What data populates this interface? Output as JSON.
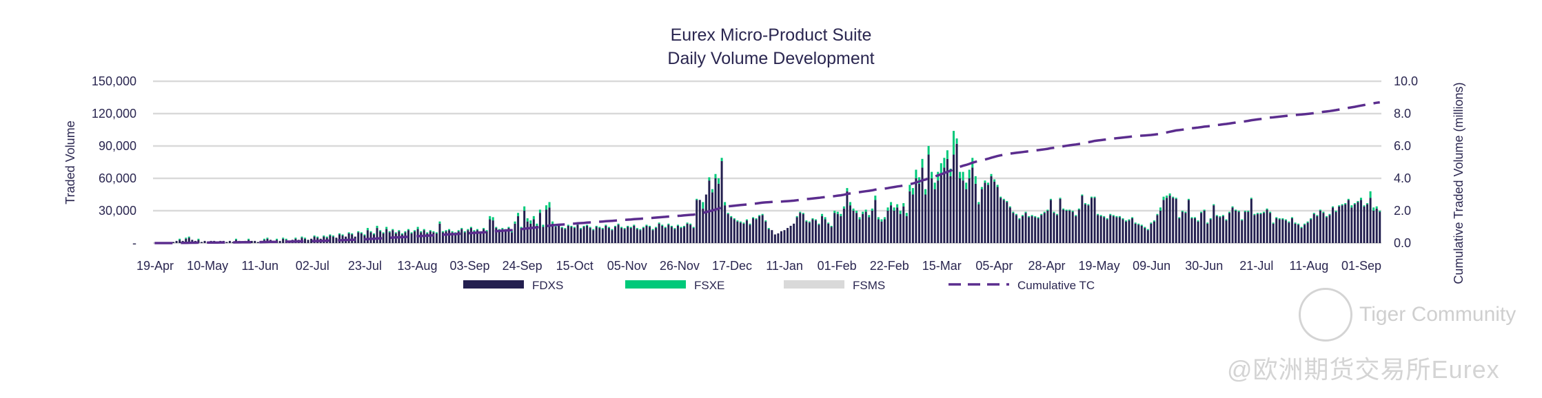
{
  "chart_data": {
    "type": "bar",
    "title": "Eurex Micro-Product Suite",
    "subtitle": "Daily Volume Development",
    "ylabel": "Traded Volume",
    "y2label": "Cumulative Traded Volume (millions)",
    "ylim": [
      0,
      150000
    ],
    "y2lim": [
      0,
      10
    ],
    "yticks": [
      "-",
      "30,000",
      "60,000",
      "90,000",
      "120,000",
      "150,000"
    ],
    "y2ticks": [
      "0.0",
      "2.0",
      "4.0",
      "6.0",
      "8.0",
      "10.0"
    ],
    "xticks": [
      "19-Apr",
      "10-May",
      "11-Jun",
      "02-Jul",
      "23-Jul",
      "13-Aug",
      "03-Sep",
      "24-Sep",
      "15-Oct",
      "05-Nov",
      "26-Nov",
      "17-Dec",
      "11-Jan",
      "01-Feb",
      "22-Feb",
      "15-Mar",
      "05-Apr",
      "28-Apr",
      "19-May",
      "09-Jun",
      "30-Jun",
      "21-Jul",
      "11-Aug",
      "01-Sep"
    ],
    "grid": true,
    "legend_position": "bottom",
    "legend": [
      {
        "name": "FDXS",
        "kind": "bar",
        "color": "#231f4f"
      },
      {
        "name": "FSXE",
        "kind": "bar",
        "color": "#00c97a"
      },
      {
        "name": "FSMS",
        "kind": "bar",
        "color": "#d9d9d9"
      },
      {
        "name": "Cumulative TC",
        "kind": "dashed-line",
        "color": "#5b2d8e"
      }
    ],
    "series_units": "contracts per day (approximate, read from chart)",
    "fdxs_k": [
      0,
      0,
      0,
      0,
      0,
      0,
      1,
      2,
      3,
      2,
      4,
      5,
      3,
      2,
      3,
      1,
      2,
      1,
      2,
      2,
      1,
      2,
      2,
      1,
      2,
      1,
      3,
      2,
      1,
      2,
      3,
      2,
      2,
      1,
      2,
      3,
      4,
      3,
      2,
      3,
      2,
      4,
      3,
      2,
      3,
      4,
      3,
      5,
      4,
      3,
      4,
      6,
      5,
      4,
      6,
      5,
      7,
      6,
      5,
      8,
      7,
      6,
      9,
      8,
      6,
      10,
      9,
      7,
      12,
      10,
      8,
      14,
      11,
      9,
      13,
      10,
      12,
      9,
      11,
      8,
      10,
      12,
      9,
      11,
      13,
      10,
      12,
      9,
      11,
      10,
      9,
      18,
      10,
      11,
      12,
      10,
      9,
      11,
      13,
      10,
      12,
      14,
      11,
      12,
      10,
      13,
      11,
      22,
      21,
      14,
      12,
      13,
      12,
      14,
      10,
      18,
      25,
      14,
      30,
      20,
      18,
      22,
      16,
      28,
      15,
      31,
      33,
      18,
      15,
      16,
      14,
      13,
      16,
      15,
      14,
      17,
      13,
      15,
      16,
      14,
      12,
      15,
      14,
      13,
      16,
      14,
      12,
      15,
      17,
      14,
      13,
      15,
      14,
      16,
      13,
      12,
      14,
      16,
      15,
      12,
      14,
      18,
      16,
      14,
      17,
      15,
      13,
      16,
      14,
      15,
      18,
      17,
      14,
      40,
      40,
      32,
      45,
      58,
      47,
      60,
      55,
      76,
      35,
      27,
      24,
      22,
      20,
      19,
      18,
      21,
      17,
      23,
      22,
      25,
      26,
      20,
      13,
      12,
      8,
      9,
      11,
      12,
      14,
      16,
      18,
      24,
      28,
      27,
      20,
      19,
      22,
      21,
      17,
      25,
      22,
      18,
      15,
      28,
      27,
      25,
      32,
      48,
      35,
      30,
      28,
      22,
      27,
      29,
      24,
      30,
      40,
      22,
      20,
      22,
      30,
      35,
      30,
      33,
      27,
      34,
      25,
      48,
      45,
      60,
      55,
      70,
      45,
      82,
      60,
      50,
      58,
      65,
      70,
      78,
      62,
      82,
      92,
      60,
      58,
      50,
      60,
      70,
      55,
      36,
      50,
      56,
      54,
      62,
      57,
      52,
      42,
      40,
      38,
      33,
      28,
      26,
      22,
      25,
      28,
      24,
      25,
      24,
      23,
      26,
      28,
      30,
      40,
      28,
      26,
      41,
      31,
      30,
      30,
      29,
      25,
      31,
      44,
      36,
      35,
      42,
      42,
      26,
      25,
      24,
      22,
      26,
      25,
      24,
      24,
      22,
      20,
      21,
      23,
      18,
      17,
      16,
      14,
      12,
      18,
      20,
      26,
      30,
      40,
      42,
      44,
      42,
      41,
      23,
      29,
      28,
      40,
      23,
      23,
      20,
      28,
      30,
      18,
      22,
      35,
      25,
      24,
      25,
      21,
      28,
      33,
      30,
      29,
      21,
      29,
      29,
      41,
      26,
      27,
      27,
      28,
      31,
      28,
      18,
      23,
      22,
      22,
      21,
      19,
      23,
      18,
      17,
      14,
      17,
      19,
      22,
      27,
      25,
      30,
      28,
      24,
      26,
      33,
      29,
      34,
      35,
      36,
      40,
      33,
      36,
      38,
      40,
      34,
      36,
      42,
      30,
      32,
      29
    ],
    "fsxe_k": [
      0,
      0,
      0,
      0,
      0,
      0,
      0,
      0,
      1,
      0,
      1,
      1,
      0,
      0,
      1,
      0,
      0,
      0,
      0,
      0,
      0,
      0,
      0,
      0,
      0,
      0,
      1,
      0,
      0,
      0,
      1,
      0,
      0,
      0,
      0,
      1,
      1,
      0,
      0,
      1,
      0,
      1,
      1,
      0,
      0,
      1,
      0,
      1,
      1,
      0,
      0,
      1,
      1,
      0,
      1,
      1,
      1,
      1,
      0,
      1,
      1,
      0,
      1,
      1,
      0,
      1,
      1,
      1,
      2,
      1,
      1,
      2,
      1,
      1,
      2,
      1,
      1,
      1,
      1,
      1,
      1,
      1,
      1,
      1,
      2,
      1,
      1,
      1,
      1,
      1,
      1,
      2,
      1,
      1,
      1,
      1,
      1,
      1,
      1,
      1,
      1,
      1,
      1,
      1,
      1,
      1,
      1,
      3,
      3,
      1,
      1,
      1,
      1,
      1,
      1,
      2,
      3,
      1,
      4,
      3,
      3,
      3,
      2,
      3,
      2,
      4,
      5,
      2,
      1,
      1,
      1,
      1,
      1,
      1,
      1,
      1,
      1,
      1,
      1,
      1,
      1,
      1,
      1,
      1,
      1,
      1,
      1,
      1,
      1,
      1,
      1,
      1,
      1,
      1,
      1,
      1,
      1,
      1,
      1,
      1,
      1,
      1,
      1,
      1,
      1,
      1,
      1,
      1,
      1,
      1,
      1,
      1,
      1,
      1,
      0,
      6,
      0,
      3,
      3,
      4,
      5,
      3,
      3,
      1,
      1,
      1,
      1,
      1,
      1,
      1,
      1,
      1,
      1,
      1,
      1,
      1,
      1,
      0,
      0,
      0,
      0,
      0,
      0,
      0,
      0,
      1,
      1,
      1,
      1,
      1,
      1,
      1,
      1,
      2,
      2,
      1,
      1,
      2,
      2,
      2,
      2,
      3,
      3,
      2,
      2,
      2,
      2,
      2,
      2,
      2,
      4,
      2,
      2,
      2,
      3,
      3,
      3,
      3,
      3,
      3,
      3,
      6,
      6,
      8,
      6,
      8,
      5,
      8,
      6,
      6,
      8,
      9,
      9,
      8,
      7,
      22,
      5,
      6,
      8,
      6,
      8,
      9,
      7,
      2,
      2,
      2,
      2,
      2,
      2,
      2,
      1,
      1,
      1,
      1,
      1,
      1,
      1,
      1,
      1,
      1,
      1,
      1,
      1,
      1,
      1,
      1,
      1,
      1,
      1,
      1,
      1,
      1,
      1,
      1,
      1,
      1,
      1,
      1,
      1,
      1,
      1,
      1,
      1,
      1,
      1,
      1,
      1,
      1,
      1,
      1,
      1,
      1,
      1,
      1,
      1,
      1,
      1,
      1,
      1,
      1,
      1,
      3,
      3,
      2,
      2,
      1,
      1,
      1,
      1,
      1,
      1,
      1,
      1,
      1,
      1,
      1,
      1,
      1,
      1,
      1,
      1,
      1,
      1,
      1,
      1,
      1,
      1,
      1,
      1,
      1,
      1,
      1,
      1,
      1,
      1,
      1,
      1,
      1,
      1,
      1,
      1,
      1,
      1,
      1,
      1,
      1,
      1,
      1,
      1,
      1,
      1,
      1,
      1,
      1,
      1,
      1,
      1,
      1,
      1,
      1,
      1,
      1,
      2,
      1,
      1,
      2,
      1,
      1,
      6,
      3,
      2,
      1,
      2,
      4,
      3,
      4,
      1,
      2,
      3
    ]
  },
  "watermark": {
    "line1": "Tiger Community",
    "line2": "@欧洲期货交易所Eurex"
  }
}
